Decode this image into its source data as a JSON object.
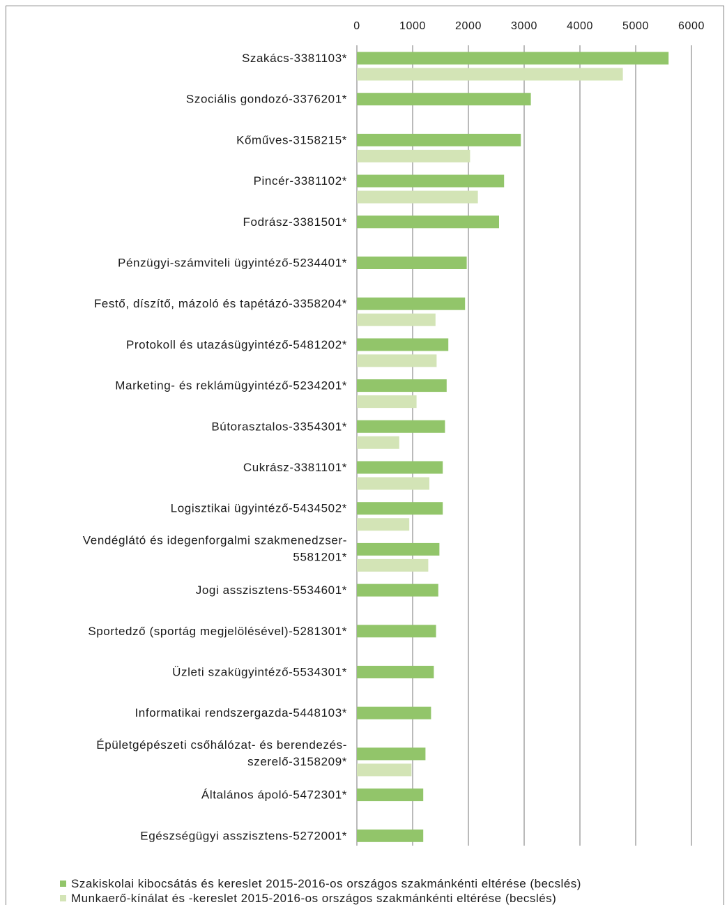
{
  "chart_data": {
    "type": "bar",
    "orientation": "horizontal",
    "xlim": [
      0,
      6000
    ],
    "ticks": [
      "0",
      "1000",
      "2000",
      "3000",
      "4000",
      "5000",
      "6000"
    ],
    "tick_values": [
      0,
      1000,
      2000,
      3000,
      4000,
      5000,
      6000
    ],
    "grid": true,
    "legend_position": "bottom",
    "categories": [
      [
        "Szakács-3381103*"
      ],
      [
        "Szociális gondozó-3376201*"
      ],
      [
        "Kőműves-3158215*"
      ],
      [
        "Pincér-3381102*"
      ],
      [
        "Fodrász-3381501*"
      ],
      [
        "Pénzügyi-számviteli ügyintéző-5234401*"
      ],
      [
        "Festő, díszítő, mázoló és tapétázó-3358204*"
      ],
      [
        "Protokoll és utazásügyintéző-5481202*"
      ],
      [
        "Marketing- és reklámügyintéző-5234201*"
      ],
      [
        "Bútorasztalos-3354301*"
      ],
      [
        "Cukrász-3381101*"
      ],
      [
        "Logisztikai ügyintéző-5434502*"
      ],
      [
        "Vendéglátó és idegenforgalmi szakmenedzser-",
        "5581201*"
      ],
      [
        "Jogi asszisztens-5534601*"
      ],
      [
        "Sportedző (sportág megjelölésével)-5281301*"
      ],
      [
        "Üzleti szakügyintéző-5534301*"
      ],
      [
        "Informatikai rendszergazda-5448103*"
      ],
      [
        "Épületgépészeti csőhálózat- és berendezés-",
        "szerelő-3158209*"
      ],
      [
        "Általános ápoló-5472301*"
      ],
      [
        "Egészségügyi asszisztens-5272001*"
      ]
    ],
    "series": [
      {
        "name": "Szakiskolai kibocsátás és kereslet 2015-2016-os országos szakmánkénti eltérése (becslés)",
        "color": "#92c56a",
        "values": [
          5590,
          3120,
          2940,
          2640,
          2550,
          1970,
          1940,
          1640,
          1610,
          1580,
          1540,
          1540,
          1480,
          1460,
          1420,
          1380,
          1330,
          1230,
          1190,
          1190
        ]
      },
      {
        "name": "Munkaerő-kínálat és -kereslet 2015-2016-os országos szakmánkénti eltérése (becslés)",
        "color": "#d3e4b6",
        "values": [
          4770,
          null,
          2030,
          2170,
          null,
          null,
          1410,
          1430,
          1070,
          760,
          1300,
          940,
          1280,
          null,
          null,
          null,
          null,
          980,
          null,
          null
        ]
      }
    ]
  }
}
